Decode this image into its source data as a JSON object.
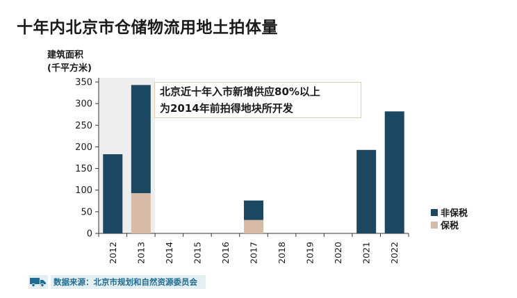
{
  "title": "十年内北京市仓储物流用地土拍体量",
  "y_label_line1": "建筑面积",
  "y_label_line2": "(千平方米)",
  "annotation_line1": "北京近十年入市新增供应80%以上",
  "annotation_line2": "为2014年前拍得地块所开发",
  "legend": {
    "non_bonded": "非保税",
    "bonded": "保税"
  },
  "source": {
    "text": "数据来源：北京市规划和自然资源委员会",
    "icon": "truck-icon"
  },
  "colors": {
    "non_bonded": "#1b4860",
    "bonded": "#d8bba6",
    "highlight": "#eeeeee",
    "source_text": "#1f6c92",
    "source_bg": "#e3eff3"
  },
  "chart_data": {
    "type": "bar",
    "stacked": true,
    "categories": [
      "2012",
      "2013",
      "2014",
      "2015",
      "2016",
      "2017",
      "2018",
      "2019",
      "2020",
      "2021",
      "2022"
    ],
    "series": [
      {
        "name": "保税",
        "values": [
          0,
          93,
          0,
          0,
          0,
          31,
          0,
          0,
          0,
          0,
          0
        ]
      },
      {
        "name": "非保税",
        "values": [
          183,
          250,
          0,
          0,
          0,
          45,
          0,
          0,
          0,
          193,
          282
        ]
      }
    ],
    "ylim": [
      0,
      350
    ],
    "yticks": [
      0,
      50,
      100,
      150,
      200,
      250,
      300,
      350
    ],
    "highlight_categories": [
      "2012",
      "2013"
    ],
    "legend_position": "right",
    "grid": false
  }
}
